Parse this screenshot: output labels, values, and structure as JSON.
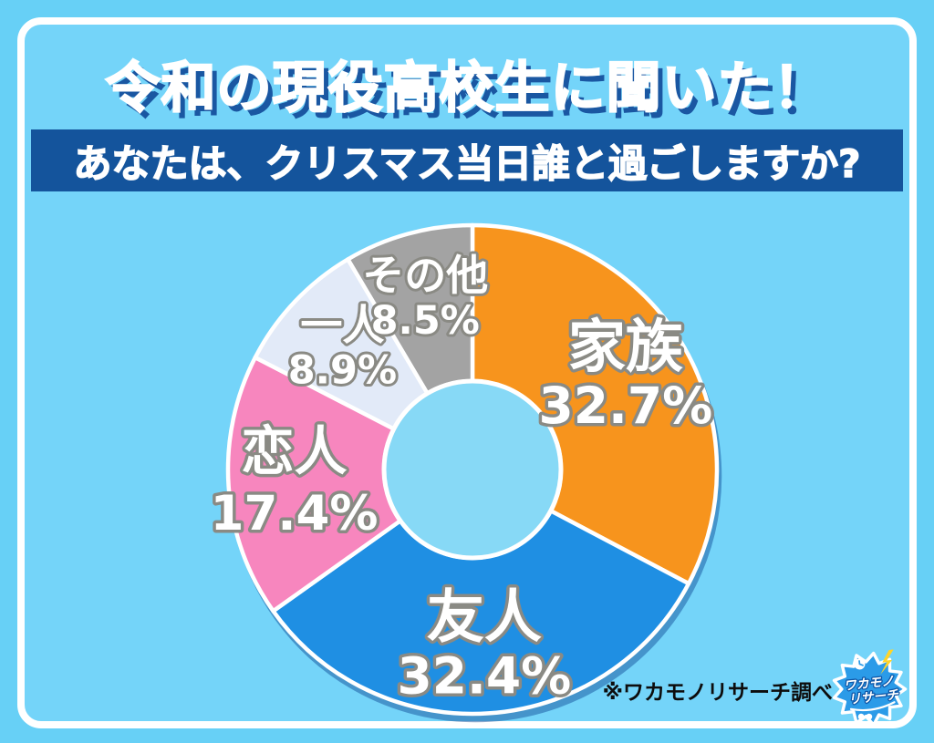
{
  "page": {
    "background_color": "#67D0F6",
    "panel_color": "#74D4F9",
    "title": "令和の現役高校生に聞いた！",
    "title_shadow_color": "#1A57A2",
    "question": "あなたは、クリスマス当日誰と過ごしますか?",
    "question_bar_color": "#14549C",
    "source_note": "※ワカモノリサーチ調べ",
    "logo": {
      "line1": "ワカモノ",
      "line2": "リサーチ",
      "badge_color": "#2B9BE8"
    }
  },
  "chart_data": {
    "type": "pie",
    "donut": true,
    "title": "あなたは、クリスマス当日誰と過ごしますか?",
    "start_angle": "top",
    "direction": "clockwise",
    "unit": "%",
    "segments": [
      {
        "label": "家族",
        "value": 32.7,
        "color": "#F7941D"
      },
      {
        "label": "友人",
        "value": 32.4,
        "color": "#1F8FE3"
      },
      {
        "label": "恋人",
        "value": 17.4,
        "color": "#F786BE"
      },
      {
        "label": "一人",
        "value": 8.9,
        "color": "#E2EAF8"
      },
      {
        "label": "その他",
        "value": 8.5,
        "color": "#A3A3A3"
      }
    ],
    "label_text_color": "#FFFFFF",
    "label_outline_color": "#8A8A84",
    "hole_color": "#87D9F6"
  }
}
